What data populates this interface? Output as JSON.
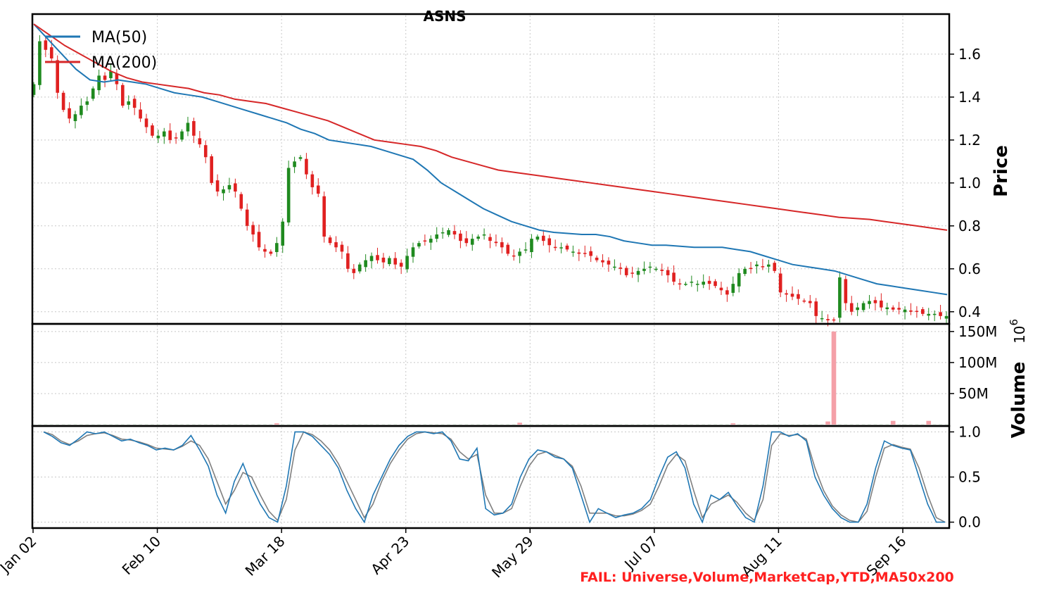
{
  "chart_data": {
    "type": "candlestick",
    "title": "ASNS",
    "x_tick_labels": [
      "Jan 02",
      "Feb 10",
      "Mar 18",
      "Apr 23",
      "May 29",
      "Jul 07",
      "Aug 11",
      "Sep 16"
    ],
    "price_panel": {
      "ylabel": "Price",
      "ylim": [
        0.35,
        1.78
      ],
      "yticks": [
        "0.4",
        "0.6",
        "0.8",
        "1.0",
        "1.2",
        "1.4",
        "1.6"
      ],
      "ytick_values": [
        0.4,
        0.6,
        0.8,
        1.0,
        1.2,
        1.4,
        1.6
      ],
      "legend": [
        "MA(50)",
        "MA(200)"
      ],
      "legend_position": "upper-left",
      "colors": {
        "up": "#1f8a1f",
        "down": "#e02020",
        "ma50": "#1f77b4",
        "ma200": "#d62728"
      },
      "close": [
        1.46,
        1.66,
        1.62,
        1.58,
        1.42,
        1.34,
        1.3,
        1.32,
        1.36,
        1.38,
        1.44,
        1.5,
        1.48,
        1.52,
        1.46,
        1.36,
        1.38,
        1.35,
        1.3,
        1.26,
        1.22,
        1.22,
        1.24,
        1.2,
        1.21,
        1.24,
        1.28,
        1.22,
        1.18,
        1.12,
        1.0,
        0.96,
        0.97,
        0.99,
        0.96,
        0.88,
        0.8,
        0.76,
        0.7,
        0.68,
        0.67,
        0.72,
        0.82,
        1.07,
        1.1,
        1.12,
        1.04,
        0.98,
        0.95,
        0.75,
        0.72,
        0.7,
        0.68,
        0.6,
        0.58,
        0.62,
        0.64,
        0.66,
        0.64,
        0.63,
        0.65,
        0.62,
        0.61,
        0.66,
        0.7,
        0.72,
        0.73,
        0.74,
        0.76,
        0.77,
        0.78,
        0.76,
        0.73,
        0.72,
        0.74,
        0.75,
        0.76,
        0.73,
        0.72,
        0.7,
        0.67,
        0.66,
        0.68,
        0.69,
        0.74,
        0.75,
        0.73,
        0.71,
        0.7,
        0.7,
        0.69,
        0.68,
        0.67,
        0.67,
        0.66,
        0.64,
        0.63,
        0.62,
        0.61,
        0.6,
        0.57,
        0.58,
        0.59,
        0.6,
        0.61,
        0.6,
        0.59,
        0.57,
        0.54,
        0.53,
        0.53,
        0.54,
        0.53,
        0.54,
        0.53,
        0.52,
        0.5,
        0.48,
        0.53,
        0.58,
        0.6,
        0.6,
        0.62,
        0.61,
        0.62,
        0.59,
        0.49,
        0.48,
        0.47,
        0.46,
        0.45,
        0.44,
        0.38,
        0.37,
        0.36,
        0.36,
        0.56,
        0.44,
        0.4,
        0.42,
        0.44,
        0.45,
        0.44,
        0.42,
        0.42,
        0.41,
        0.41,
        0.41,
        0.4,
        0.4,
        0.39,
        0.39,
        0.39,
        0.38,
        0.38
      ],
      "ma50": [
        1.74,
        1.67,
        1.6,
        1.53,
        1.48,
        1.47,
        1.48,
        1.47,
        1.46,
        1.44,
        1.42,
        1.41,
        1.4,
        1.38,
        1.36,
        1.34,
        1.32,
        1.3,
        1.28,
        1.25,
        1.23,
        1.2,
        1.19,
        1.18,
        1.17,
        1.15,
        1.13,
        1.11,
        1.06,
        1.0,
        0.96,
        0.92,
        0.88,
        0.85,
        0.82,
        0.8,
        0.78,
        0.77,
        0.765,
        0.76,
        0.76,
        0.75,
        0.73,
        0.72,
        0.71,
        0.71,
        0.705,
        0.7,
        0.7,
        0.7,
        0.69,
        0.68,
        0.66,
        0.64,
        0.62,
        0.61,
        0.6,
        0.59,
        0.57,
        0.55,
        0.53,
        0.52,
        0.51,
        0.5,
        0.49,
        0.48
      ],
      "ma200": [
        1.74,
        1.69,
        1.64,
        1.6,
        1.56,
        1.52,
        1.49,
        1.47,
        1.46,
        1.45,
        1.44,
        1.42,
        1.41,
        1.39,
        1.38,
        1.37,
        1.35,
        1.33,
        1.31,
        1.29,
        1.26,
        1.23,
        1.2,
        1.19,
        1.18,
        1.17,
        1.15,
        1.12,
        1.1,
        1.08,
        1.06,
        1.05,
        1.04,
        1.03,
        1.02,
        1.01,
        1.0,
        0.99,
        0.98,
        0.97,
        0.96,
        0.95,
        0.94,
        0.93,
        0.92,
        0.91,
        0.9,
        0.89,
        0.88,
        0.87,
        0.86,
        0.85,
        0.84,
        0.835,
        0.83,
        0.82,
        0.81,
        0.8,
        0.79,
        0.78
      ]
    },
    "volume_panel": {
      "ylabel": "Volume",
      "offset_label": "10^6",
      "yticks": [
        "50M",
        "100M",
        "150M"
      ],
      "ytick_values": [
        50,
        100,
        150
      ],
      "ylim": [
        0,
        160
      ],
      "spike_values": [
        {
          "index": 135,
          "value": 150
        },
        {
          "index": 134,
          "value": 5
        },
        {
          "index": 145,
          "value": 6
        },
        {
          "index": 151,
          "value": 6
        },
        {
          "index": 41,
          "value": 2
        },
        {
          "index": 82,
          "value": 3
        },
        {
          "index": 118,
          "value": 2
        }
      ]
    },
    "stochastic_panel": {
      "yticks": [
        "0.0",
        "0.5",
        "1.0"
      ],
      "ytick_values": [
        0.0,
        0.5,
        1.0
      ],
      "ylim": [
        -0.05,
        1.05
      ],
      "colors": {
        "k": "#1f77b4",
        "d": "#808080"
      },
      "k": [
        1.0,
        0.95,
        0.88,
        0.85,
        0.92,
        1.0,
        0.98,
        1.0,
        0.95,
        0.9,
        0.92,
        0.88,
        0.85,
        0.8,
        0.82,
        0.8,
        0.85,
        0.96,
        0.8,
        0.62,
        0.3,
        0.1,
        0.45,
        0.65,
        0.4,
        0.2,
        0.05,
        0.0,
        0.4,
        1.0,
        1.0,
        0.95,
        0.85,
        0.75,
        0.6,
        0.35,
        0.15,
        0.0,
        0.3,
        0.5,
        0.7,
        0.85,
        0.95,
        1.0,
        1.0,
        0.98,
        1.0,
        0.9,
        0.7,
        0.68,
        0.82,
        0.15,
        0.08,
        0.1,
        0.2,
        0.5,
        0.7,
        0.8,
        0.78,
        0.72,
        0.7,
        0.6,
        0.3,
        0.0,
        0.15,
        0.1,
        0.05,
        0.08,
        0.1,
        0.15,
        0.25,
        0.5,
        0.72,
        0.78,
        0.6,
        0.2,
        0.0,
        0.3,
        0.25,
        0.33,
        0.18,
        0.05,
        0.0,
        0.4,
        1.0,
        1.0,
        0.95,
        0.98,
        0.9,
        0.5,
        0.3,
        0.15,
        0.05,
        0.0,
        0.0,
        0.2,
        0.6,
        0.9,
        0.85,
        0.82,
        0.8,
        0.5,
        0.2,
        0.0,
        0.0
      ],
      "d": [
        1.0,
        0.97,
        0.9,
        0.86,
        0.9,
        0.96,
        0.98,
        0.99,
        0.96,
        0.92,
        0.91,
        0.89,
        0.86,
        0.82,
        0.81,
        0.8,
        0.84,
        0.9,
        0.85,
        0.7,
        0.45,
        0.2,
        0.35,
        0.55,
        0.5,
        0.3,
        0.12,
        0.02,
        0.25,
        0.8,
        1.0,
        0.97,
        0.9,
        0.8,
        0.65,
        0.45,
        0.25,
        0.05,
        0.2,
        0.45,
        0.65,
        0.8,
        0.92,
        0.98,
        1.0,
        0.99,
        0.98,
        0.92,
        0.78,
        0.7,
        0.75,
        0.3,
        0.1,
        0.1,
        0.15,
        0.4,
        0.62,
        0.75,
        0.78,
        0.74,
        0.7,
        0.62,
        0.4,
        0.1,
        0.1,
        0.1,
        0.07,
        0.07,
        0.09,
        0.13,
        0.2,
        0.4,
        0.63,
        0.75,
        0.68,
        0.35,
        0.05,
        0.2,
        0.25,
        0.3,
        0.22,
        0.1,
        0.02,
        0.25,
        0.85,
        0.98,
        0.96,
        0.97,
        0.92,
        0.6,
        0.35,
        0.18,
        0.08,
        0.02,
        0.0,
        0.12,
        0.5,
        0.82,
        0.86,
        0.83,
        0.81,
        0.6,
        0.3,
        0.05,
        0.0
      ]
    },
    "annotation": "FAIL: Universe,Volume,MarketCap,YTD,MA50x200"
  }
}
